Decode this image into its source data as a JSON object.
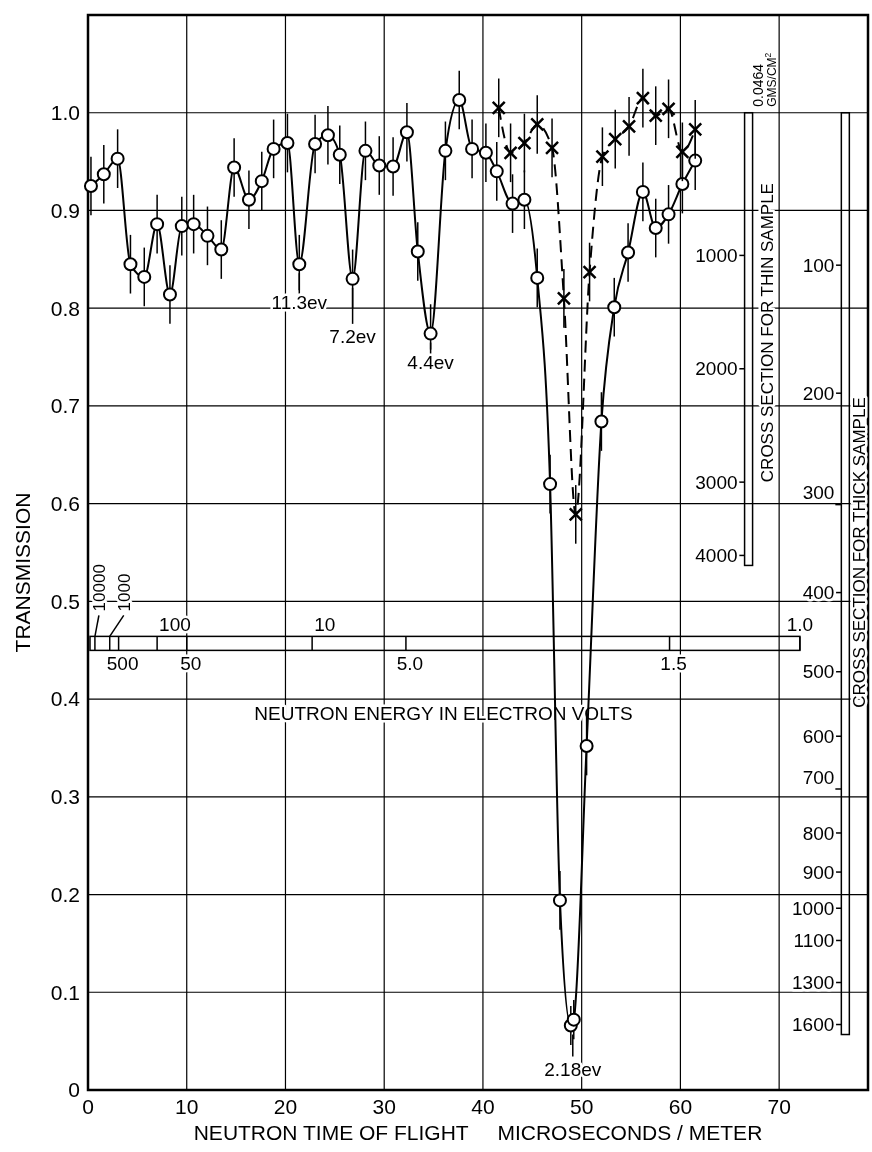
{
  "chart_data": {
    "type": "line",
    "xlabel": "NEUTRON TIME OF FLIGHT     MICROSECONDS / METER",
    "ylabel": "TRANSMISSION",
    "xlim": [
      0,
      79
    ],
    "xticks": [
      0,
      10,
      20,
      30,
      40,
      50,
      60,
      70
    ],
    "ylim": [
      0,
      1.1
    ],
    "yticks": [
      0,
      0.1,
      0.2,
      0.3,
      0.4,
      0.5,
      0.6,
      0.7,
      0.8,
      0.9,
      {
        "value": 1,
        "label": "1.0"
      }
    ],
    "grid": true,
    "series": [
      {
        "color": "#000000",
        "marker": "circle",
        "line_style": "solid",
        "x": [
          0.3,
          1.6,
          3.0,
          4.3,
          5.7,
          7.0,
          8.3,
          9.5,
          10.7,
          12.1,
          13.5,
          14.8,
          16.3,
          17.6,
          18.8,
          20.2,
          21.4,
          23.0,
          24.3,
          25.5,
          26.8,
          28.1,
          29.5,
          30.9,
          32.3,
          33.4,
          34.7,
          36.2,
          37.6,
          38.9,
          40.3,
          41.4,
          43.0,
          44.2,
          45.5,
          46.8,
          47.8,
          48.9,
          49.2,
          50.5,
          52.0,
          53.3,
          54.7,
          56.2,
          57.5,
          58.8,
          60.2,
          61.5
        ],
        "values": [
          0.925,
          0.937,
          0.953,
          0.845,
          0.832,
          0.886,
          0.814,
          0.884,
          0.886,
          0.874,
          0.86,
          0.944,
          0.911,
          0.93,
          0.963,
          0.969,
          0.845,
          0.968,
          0.977,
          0.957,
          0.83,
          0.961,
          0.946,
          0.945,
          0.98,
          0.858,
          0.774,
          0.961,
          1.013,
          0.963,
          0.959,
          0.94,
          0.907,
          0.911,
          0.831,
          0.62,
          0.194,
          0.066,
          0.072,
          0.352,
          0.684,
          0.801,
          0.857,
          0.919,
          0.882,
          0.896,
          0.927,
          0.951
        ],
        "errors": [
          0.03,
          0.03,
          0.03,
          0.03,
          0.03,
          0.03,
          0.03,
          0.03,
          0.03,
          0.03,
          0.03,
          0.03,
          0.03,
          0.03,
          0.03,
          0.03,
          0.03,
          0.03,
          0.03,
          0.03,
          0.03,
          0.03,
          0.03,
          0.03,
          0.03,
          0.03,
          0.03,
          0.03,
          0.03,
          0.03,
          0.03,
          0.03,
          0.03,
          0.03,
          0.03,
          0.03,
          0.03,
          0.02,
          0.02,
          0.03,
          0.03,
          0.03,
          0.03,
          0.03,
          0.03,
          0.03,
          0.03,
          0.03
        ]
      },
      {
        "color": "#000000",
        "marker": "cross",
        "line_style": "dashed",
        "x": [
          41.6,
          42.8,
          44.2,
          45.5,
          47.0,
          48.2,
          49.4,
          50.8,
          52.1,
          53.4,
          54.8,
          56.2,
          57.5,
          58.8,
          60.2,
          61.5
        ],
        "values": [
          1.005,
          0.959,
          0.969,
          0.988,
          0.964,
          0.81,
          0.589,
          0.837,
          0.955,
          0.973,
          0.986,
          1.015,
          0.997,
          1.004,
          0.96,
          0.983
        ],
        "errors": [
          0.03,
          0.03,
          0.03,
          0.03,
          0.03,
          0.03,
          0.03,
          0.03,
          0.03,
          0.03,
          0.03,
          0.03,
          0.03,
          0.03,
          0.03,
          0.03
        ]
      }
    ],
    "annotations": [
      {
        "text": "11.3ev",
        "x": 21.4,
        "y": 0.845
      },
      {
        "text": "7.2ev",
        "x": 26.8,
        "y": 0.83
      },
      {
        "text": "4.4ev",
        "x": 34.7,
        "y": 0.774
      },
      {
        "text": "2.18ev",
        "x": 49.1,
        "y": 0.066
      },
      "0.0464 GMS/CM$^{2}$",
      "CROSS SECTION FOR THIN SAMPLE",
      "1000",
      "2000",
      "3000",
      "4000",
      "CROSS SECTION FOR THICK SAMPLE",
      "100",
      "200",
      "300",
      "400",
      "500",
      "600",
      "700",
      "800",
      "900",
      "1000",
      "1100",
      "1300",
      "1600",
      "NEUTRON ENERGY IN ELECTRON VOLTS",
      "10000",
      "1000",
      "500",
      "100",
      "50",
      "10",
      "5.0",
      "1.5",
      "1.0"
    ]
  }
}
